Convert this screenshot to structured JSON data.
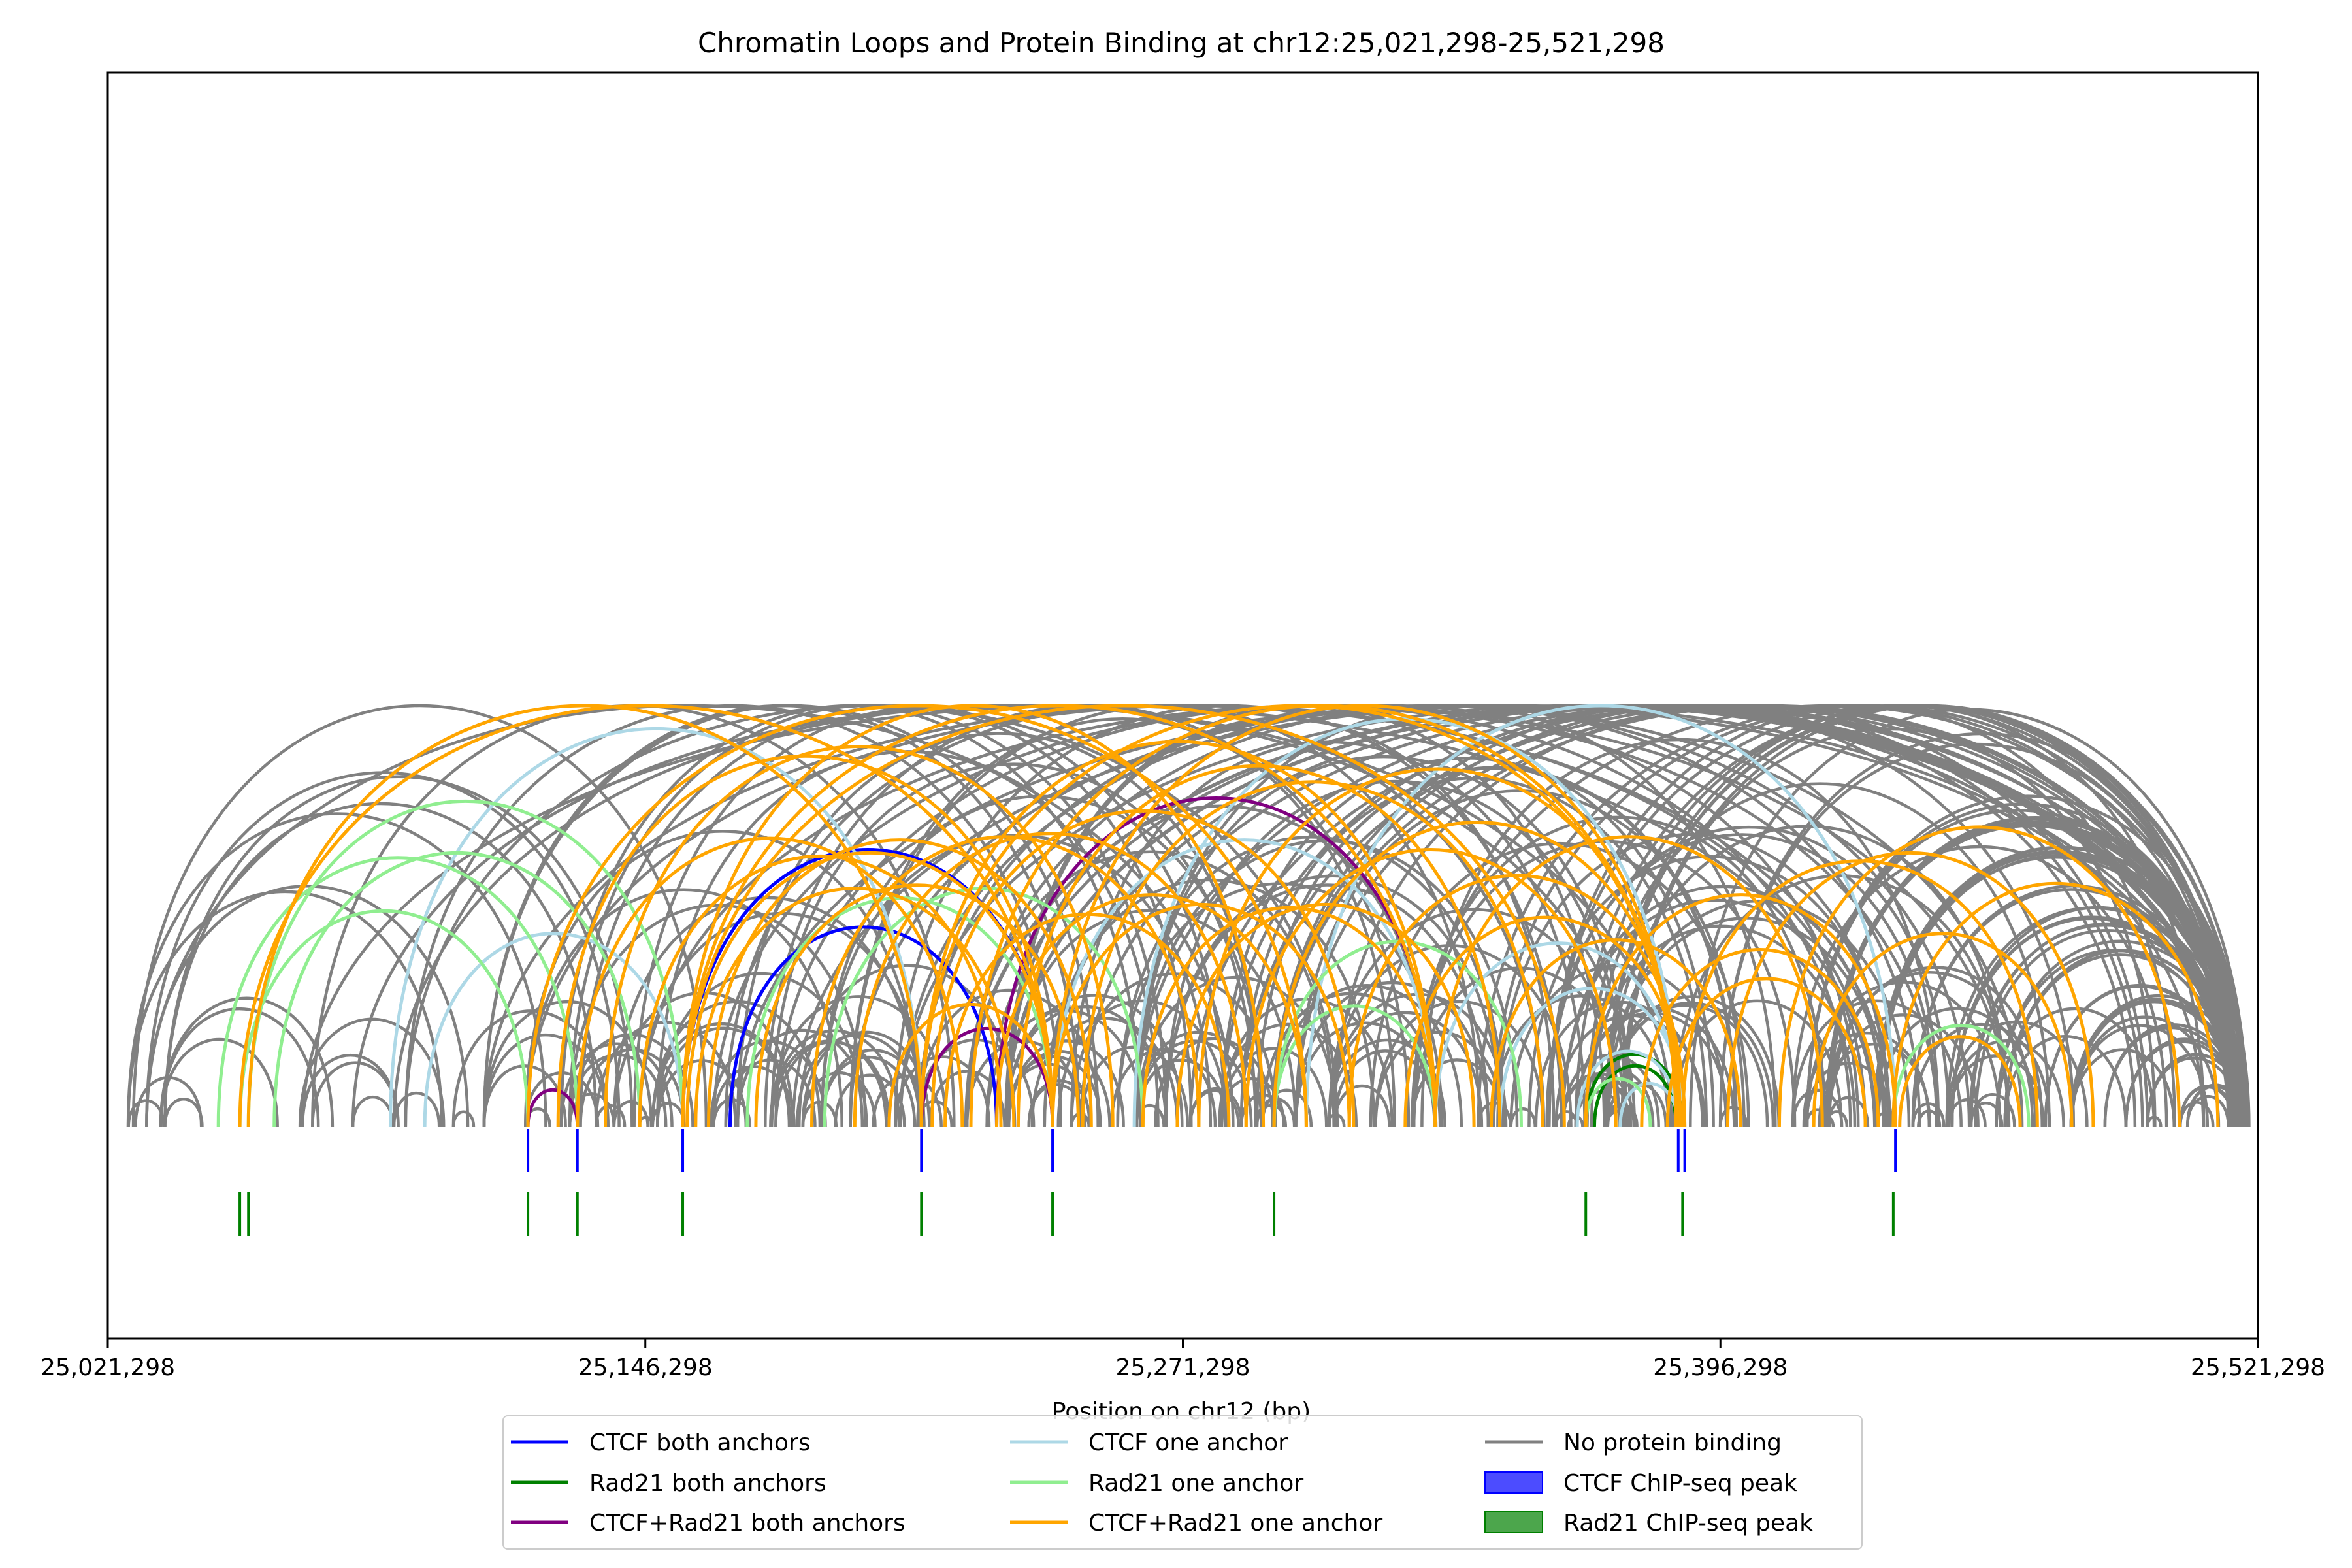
{
  "chart_data": {
    "type": "line",
    "title": "Chromatin Loops and Protein Binding at chr12:25,021,298-25,521,298",
    "xlabel": "Position on chr12 (bp)",
    "ylabel": "",
    "xlim": [
      25021298,
      25521298
    ],
    "x_ticks": [
      25021298,
      25146298,
      25271298,
      25396298,
      25521298
    ],
    "x_tick_labels": [
      "25,021,298",
      "25,146,298",
      "25,271,298",
      "25,396,298",
      "25,521,298"
    ],
    "grid": false,
    "legend_position": "bottom-center",
    "legend": [
      {
        "label": "CTCF both anchors",
        "kind": "line",
        "color": "#0000ff"
      },
      {
        "label": "Rad21 both anchors",
        "kind": "line",
        "color": "#008000"
      },
      {
        "label": "CTCF+Rad21 both anchors",
        "kind": "line",
        "color": "#800080"
      },
      {
        "label": "CTCF one anchor",
        "kind": "line",
        "color": "#add8e6"
      },
      {
        "label": "Rad21 one anchor",
        "kind": "line",
        "color": "#90ee90"
      },
      {
        "label": "CTCF+Rad21 one anchor",
        "kind": "line",
        "color": "#ffa500"
      },
      {
        "label": "No protein binding",
        "kind": "line",
        "color": "#808080"
      },
      {
        "label": "CTCF ChIP-seq peak",
        "kind": "patch",
        "color": "#0000ff"
      },
      {
        "label": "Rad21 ChIP-seq peak",
        "kind": "patch",
        "color": "#008000"
      }
    ],
    "ctcf_peaks": [
      25119000,
      25130500,
      25155000,
      25210500,
      25241000,
      25386500,
      25388000,
      25437000
    ],
    "rad21_peaks": [
      25052000,
      25054000,
      25119000,
      25130500,
      25155000,
      25210500,
      25241000,
      25292500,
      25365000,
      25387500,
      25436500
    ],
    "loops": [
      {
        "category": "CTCF both anchors",
        "color": "#0000ff",
        "pairs": [
          [
            25155000,
            25241000
          ],
          [
            25166000,
            25228000
          ]
        ]
      },
      {
        "category": "Rad21 both anchors",
        "color": "#008000",
        "pairs": [
          [
            25365000,
            25387500
          ],
          [
            25367000,
            25386000
          ]
        ]
      },
      {
        "category": "CTCF+Rad21 both anchors",
        "color": "#800080",
        "pairs": [
          [
            25119000,
            25130500
          ],
          [
            25210500,
            25241000
          ],
          [
            25228000,
            25330000
          ]
        ]
      },
      {
        "category": "CTCF one anchor",
        "color": "#add8e6",
        "pairs": [
          [
            25087000,
            25210500
          ],
          [
            25095000,
            25155000
          ],
          [
            25241000,
            25330000
          ],
          [
            25260000,
            25386500
          ],
          [
            25300000,
            25437000
          ],
          [
            25330000,
            25387000
          ],
          [
            25345000,
            25388000
          ],
          [
            25363000,
            25386500
          ],
          [
            25373000,
            25386500
          ]
        ]
      },
      {
        "category": "Rad21 one anchor",
        "color": "#90ee90",
        "pairs": [
          [
            25047000,
            25130500
          ],
          [
            25052000,
            25119000
          ],
          [
            25054000,
            25155000
          ],
          [
            25060000,
            25145000
          ],
          [
            25170000,
            25241000
          ],
          [
            25188000,
            25262000
          ],
          [
            25292500,
            25330000
          ],
          [
            25292500,
            25350000
          ],
          [
            25365000,
            25380000
          ],
          [
            25436500,
            25468000
          ]
        ]
      },
      {
        "category": "CTCF+Rad21 one anchor",
        "color": "#ffa500",
        "pairs": [
          [
            25052000,
            25241000
          ],
          [
            25054000,
            25210500
          ],
          [
            25119000,
            25300000
          ],
          [
            25126000,
            25241000
          ],
          [
            25130500,
            25220000
          ],
          [
            25137000,
            25255000
          ],
          [
            25145000,
            25229000
          ],
          [
            25155000,
            25290000
          ],
          [
            25155000,
            25330000
          ],
          [
            25155000,
            25360000
          ],
          [
            25156000,
            25241000
          ],
          [
            25158000,
            25232000
          ],
          [
            25161000,
            25250000
          ],
          [
            25172000,
            25247000
          ],
          [
            25185000,
            25275000
          ],
          [
            25195000,
            25286000
          ],
          [
            25203000,
            25241000
          ],
          [
            25210500,
            25330000
          ],
          [
            25210500,
            25386500
          ],
          [
            25213000,
            25311000
          ],
          [
            25216000,
            25282000
          ],
          [
            25222000,
            25386000
          ],
          [
            25228000,
            25300000
          ],
          [
            25233000,
            25345000
          ],
          [
            25241000,
            25310000
          ],
          [
            25241000,
            25386000
          ],
          [
            25248000,
            25355000
          ],
          [
            25262000,
            25330000
          ],
          [
            25270000,
            25339000
          ],
          [
            25275000,
            25386000
          ],
          [
            25286000,
            25372000
          ],
          [
            25292500,
            25387000
          ],
          [
            25310000,
            25388000
          ],
          [
            25323000,
            25388000
          ],
          [
            25330000,
            25420000
          ],
          [
            25343000,
            25401000
          ],
          [
            25365000,
            25437000
          ],
          [
            25378000,
            25433000
          ],
          [
            25384000,
            25430000
          ],
          [
            25387500,
            25470000
          ],
          [
            25398000,
            25483000
          ],
          [
            25410000,
            25503000
          ],
          [
            25418000,
            25478000
          ],
          [
            25436500,
            25512000
          ],
          [
            25438000,
            25466000
          ]
        ]
      }
    ]
  }
}
